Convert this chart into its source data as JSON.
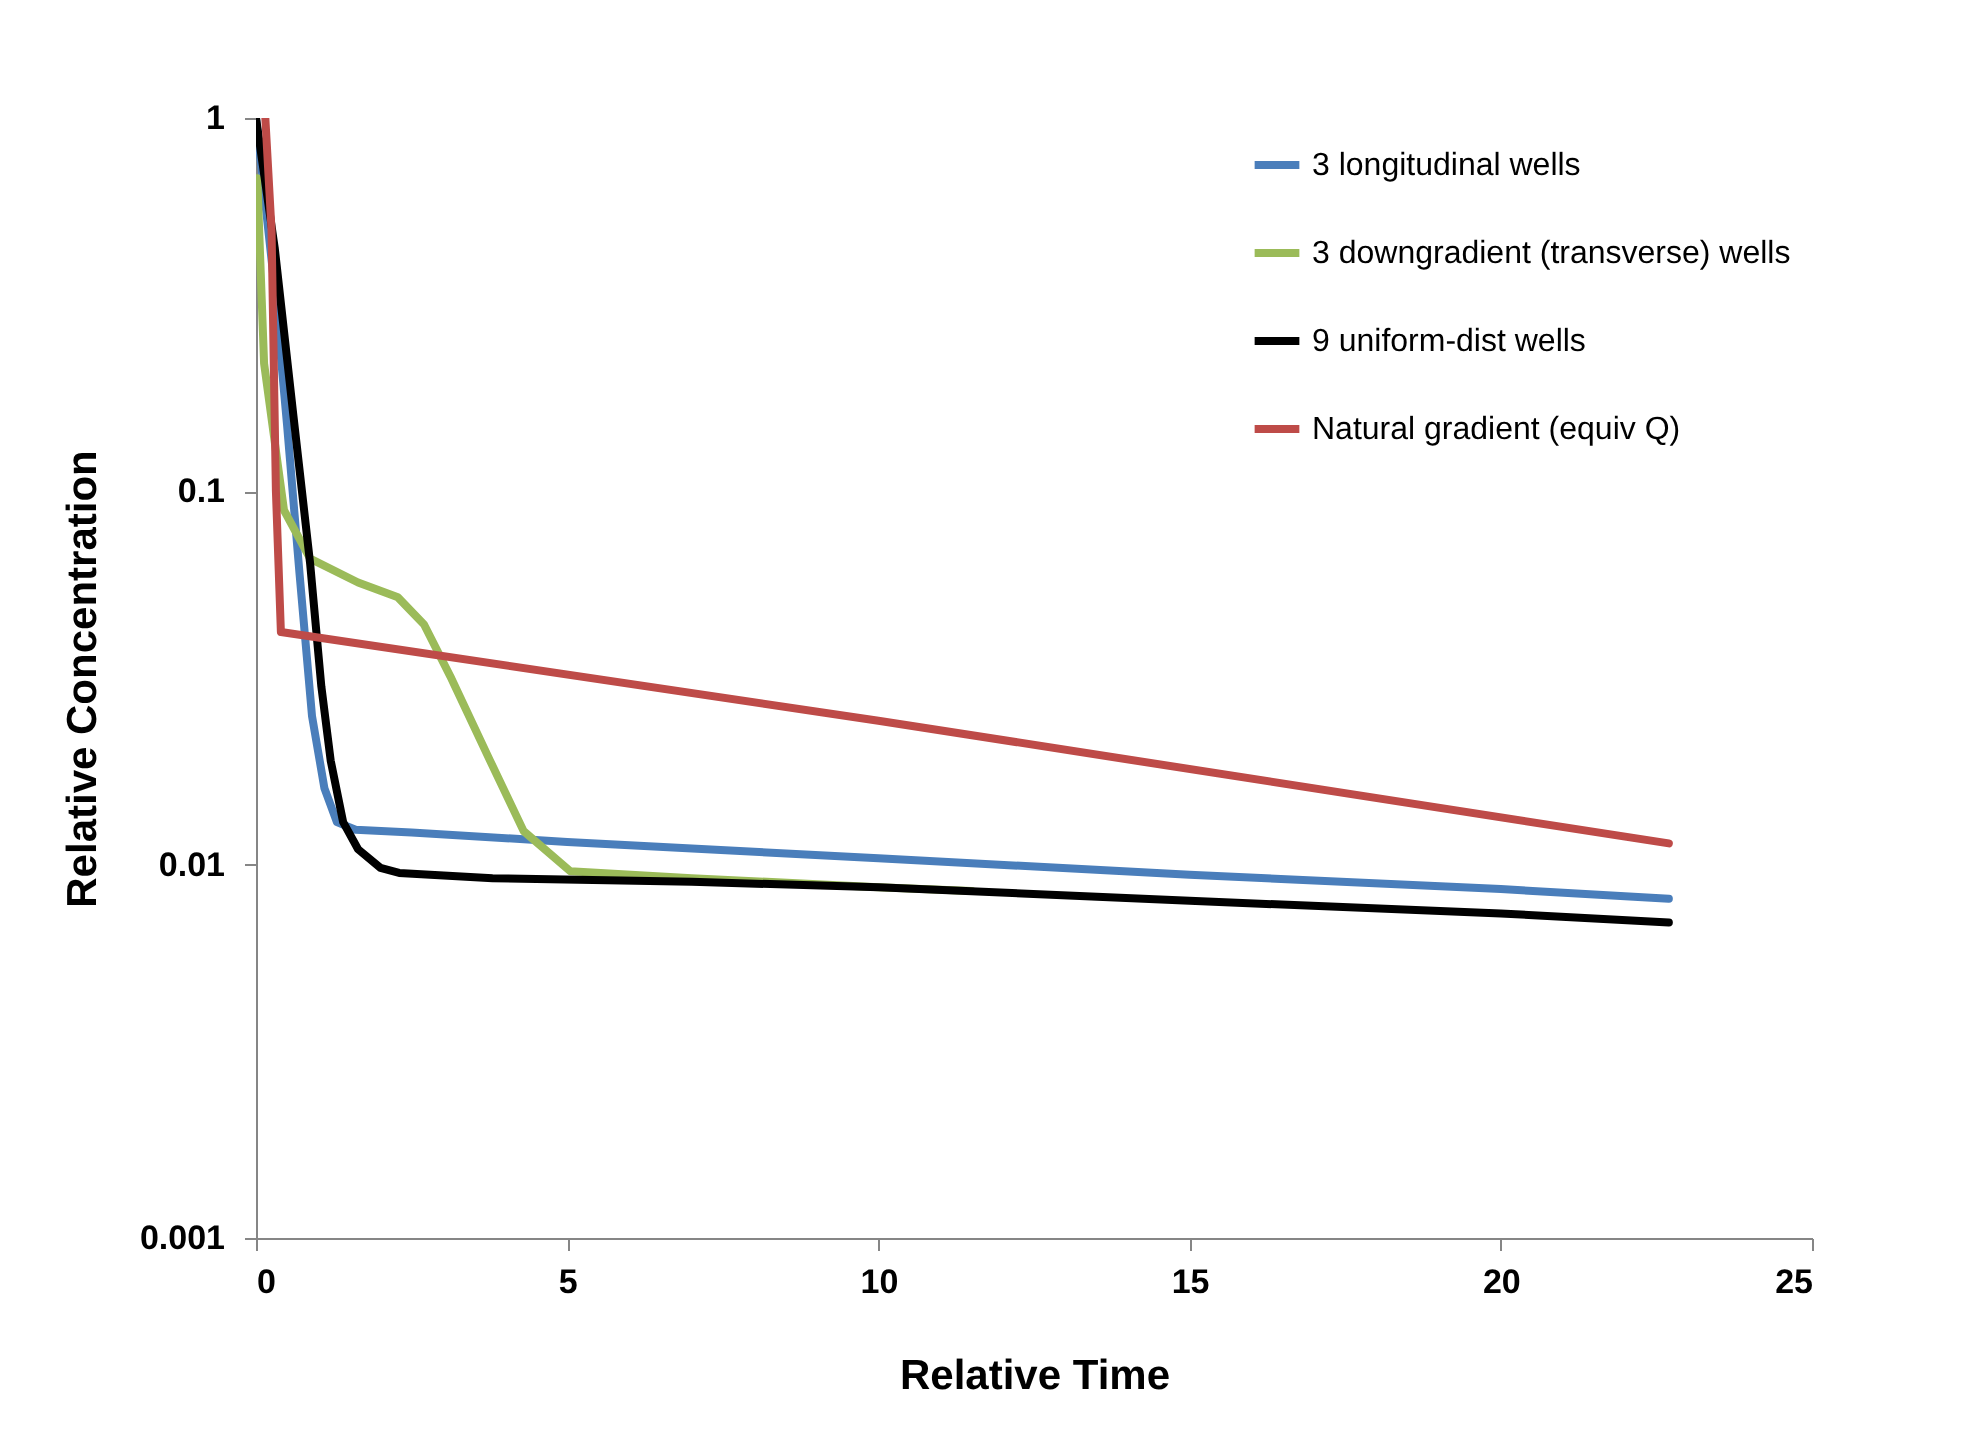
{
  "chart_data": {
    "type": "line",
    "xlabel": "Relative Time",
    "ylabel": "Relative Concentration",
    "log": "y",
    "xlim": [
      0,
      25
    ],
    "xticks": [
      0,
      5,
      10,
      15,
      20,
      25
    ],
    "ylim": [
      0.001,
      1
    ],
    "yticks": [
      0.001,
      0.01,
      0.1,
      1
    ],
    "grid": false,
    "legend": "top right",
    "marker": "none",
    "line_style": "solid",
    "series": [
      {
        "name": "3 longitudinal wells",
        "color": "#4a7ebb",
        "x": [
          0,
          0.3,
          0.5,
          0.7,
          0.9,
          1.1,
          1.3,
          1.6,
          2.5,
          5,
          10,
          15,
          20,
          22.7
        ],
        "values": [
          1,
          0.35,
          0.15,
          0.06,
          0.025,
          0.016,
          0.013,
          0.0124,
          0.0122,
          0.0115,
          0.0104,
          0.0094,
          0.0086,
          0.0081
        ]
      },
      {
        "name": "3 downgradient (transverse) wells",
        "color": "#9bbb59",
        "x": [
          0.02,
          0.13,
          0.45,
          0.87,
          1.64,
          2.28,
          2.7,
          3.12,
          3.76,
          4.3,
          5.05,
          7,
          10,
          11.5
        ],
        "values": [
          0.69,
          0.22,
          0.089,
          0.066,
          0.057,
          0.052,
          0.044,
          0.032,
          0.019,
          0.0123,
          0.0096,
          0.0092,
          0.0087,
          0.0085
        ]
      },
      {
        "name": "9 uniform-dist wells",
        "color": "#000000",
        "x": [
          0,
          0.3,
          0.6,
          0.87,
          1.05,
          1.2,
          1.4,
          1.64,
          2,
          2.3,
          3.8,
          7,
          10,
          15,
          20,
          22.7
        ],
        "values": [
          1,
          0.45,
          0.16,
          0.064,
          0.03,
          0.019,
          0.013,
          0.011,
          0.0098,
          0.0095,
          0.0092,
          0.009,
          0.0087,
          0.008,
          0.0074,
          0.007
        ]
      },
      {
        "name": "Natural gradient (equiv Q)",
        "color": "#be4b48",
        "x": [
          0.15,
          0.25,
          0.32,
          0.4,
          10,
          22.7
        ],
        "values": [
          1,
          0.5,
          0.1,
          0.042,
          0.0243,
          0.0114
        ]
      }
    ]
  }
}
